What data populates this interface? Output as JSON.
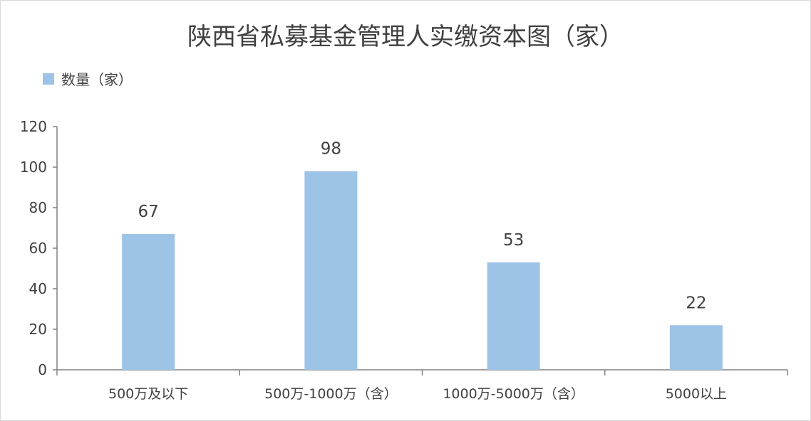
{
  "chart_data": {
    "type": "bar",
    "title": "陕西省私募基金管理人实缴资本图（家）",
    "categories": [
      "500万及以下",
      "500万-1000万（含）",
      "1000万-5000万（含）",
      "5000以上"
    ],
    "series": [
      {
        "name": "数量（家）",
        "values": [
          67,
          98,
          53,
          22
        ]
      }
    ],
    "ylim": [
      0,
      120
    ],
    "yticks": [
      0,
      20,
      40,
      60,
      80,
      100,
      120
    ],
    "grid": false,
    "legend_position": "top-left",
    "bar_color": "#9dc3e6",
    "data_labels": true
  }
}
